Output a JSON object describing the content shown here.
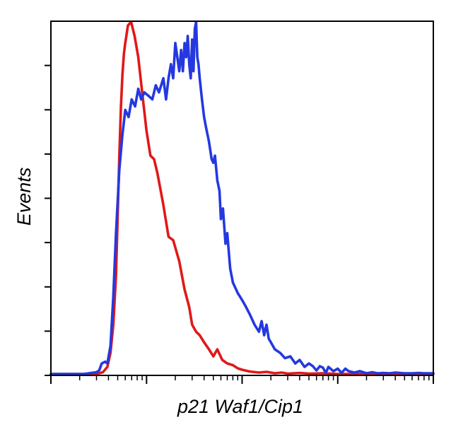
{
  "chart_data": {
    "type": "line",
    "title": "",
    "xlabel": "p21 Waf1/Cip1",
    "ylabel": "Events",
    "x_scale": "log",
    "xlim": [
      1,
      10000
    ],
    "ylim": [
      0,
      100
    ],
    "grid": false,
    "legend": "none",
    "series": [
      {
        "color": "#e01818",
        "x": [
          1,
          1.5,
          2.2,
          3,
          3.5,
          3.9,
          4.2,
          4.5,
          4.8,
          5.0,
          5.2,
          5.4,
          5.6,
          5.8,
          6.0,
          6.4,
          6.9,
          7.5,
          8.2,
          9.0,
          10,
          11,
          12,
          13,
          15,
          17,
          19,
          22,
          25,
          28,
          30,
          33,
          36,
          40,
          45,
          50,
          55,
          62,
          70,
          80,
          90,
          100,
          120,
          150,
          180,
          220,
          260,
          300,
          400,
          500,
          700,
          1000,
          10000
        ],
        "y": [
          0,
          0,
          0,
          0,
          0.5,
          2,
          6,
          14,
          28,
          45,
          62,
          76,
          85,
          91,
          94,
          99,
          100,
          96,
          90,
          80,
          69,
          62,
          61,
          57,
          48,
          39,
          38,
          32,
          24,
          19,
          14,
          12,
          11,
          9,
          7,
          5,
          7,
          4,
          3,
          2.5,
          1.6,
          1.2,
          0.7,
          0.4,
          0.6,
          0.2,
          0.4,
          0.1,
          0.3,
          0.1,
          0.2,
          0,
          0
        ]
      },
      {
        "color": "#2438e0",
        "x": [
          1,
          1.5,
          2.2,
          3,
          3.2,
          3.4,
          3.7,
          3.9,
          4.2,
          4.5,
          4.8,
          5.2,
          5.6,
          6.0,
          6.5,
          7.0,
          7.6,
          8.2,
          8.8,
          9.5,
          10.5,
          11.5,
          12.5,
          13.5,
          15,
          16,
          17,
          18,
          19,
          20,
          21,
          22,
          23,
          24,
          25,
          26,
          27,
          28,
          29,
          30,
          31,
          32,
          33,
          34,
          35,
          36,
          38,
          40,
          42,
          45,
          48,
          50,
          52,
          55,
          58,
          60,
          63,
          67,
          70,
          75,
          80,
          90,
          100,
          110,
          120,
          135,
          150,
          160,
          170,
          180,
          190,
          200,
          220,
          250,
          280,
          320,
          360,
          400,
          450,
          500,
          550,
          600,
          650,
          700,
          750,
          800,
          900,
          1000,
          1100,
          1200,
          1300,
          1500,
          1700,
          2000,
          2300,
          2600,
          3000,
          3500,
          4000,
          5000,
          6000,
          7000,
          8000,
          10000
        ],
        "y": [
          0,
          0,
          0,
          0.5,
          1,
          3,
          3.5,
          3,
          8,
          22,
          40,
          58,
          68,
          75,
          73,
          78,
          76,
          81,
          78,
          80,
          79,
          78,
          82,
          80,
          84,
          78,
          84,
          88,
          84,
          94,
          90,
          86,
          92,
          86,
          94,
          90,
          96,
          88,
          84,
          95,
          86,
          98,
          100,
          90,
          88,
          84,
          78,
          73,
          70,
          66,
          61,
          60,
          62,
          55,
          52,
          44,
          47,
          37,
          40,
          30,
          26,
          23,
          21,
          19,
          17,
          14,
          12,
          15,
          11,
          14,
          10,
          9,
          7,
          6,
          4.5,
          5,
          3,
          4,
          2,
          3,
          2.2,
          1,
          2.2,
          1.8,
          0.3,
          2,
          0.8,
          1.5,
          0.3,
          1.5,
          0.8,
          0.4,
          0.8,
          0.2,
          0.5,
          0.2,
          0.3,
          0.2,
          0.4,
          0.2,
          0.2,
          0.3,
          0.2,
          0.2
        ]
      }
    ]
  }
}
